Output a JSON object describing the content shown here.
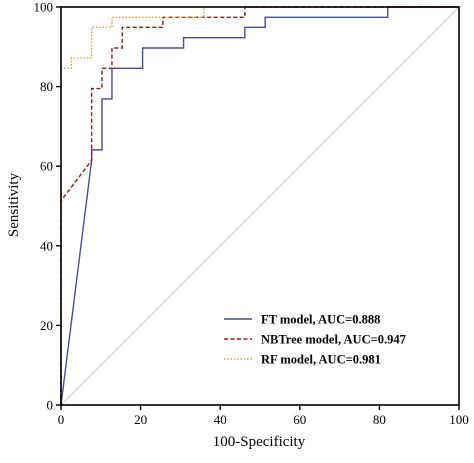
{
  "chart_data": {
    "type": "line",
    "xlabel": "100-Specificity",
    "ylabel": "Sensitivity",
    "xlim": [
      0,
      100
    ],
    "ylim": [
      0,
      100
    ],
    "xticks": [
      0,
      20,
      40,
      60,
      80,
      100
    ],
    "yticks": [
      0,
      20,
      40,
      60,
      80,
      100
    ],
    "grid": false,
    "legend_position": "bottom-right",
    "reference_line": {
      "x": [
        0,
        100
      ],
      "y": [
        0,
        100
      ],
      "color": "#c8c8c8"
    },
    "series": [
      {
        "name": "FT model, AUC=0.888",
        "color": "#4a4a9a",
        "dash": "solid",
        "x": [
          0,
          7.7,
          7.7,
          10.3,
          10.3,
          12.8,
          12.8,
          20.5,
          20.5,
          30.8,
          30.8,
          46.2,
          46.2,
          51.3,
          51.3,
          82.1,
          82.1,
          84.6,
          100
        ],
        "y": [
          0,
          61.5,
          64.1,
          64.1,
          76.9,
          76.9,
          84.6,
          84.6,
          89.7,
          89.7,
          92.3,
          92.3,
          94.9,
          94.9,
          97.4,
          97.4,
          100,
          100,
          100
        ]
      },
      {
        "name": "NBTree model, AUC=0.947",
        "color": "#8b1a1a",
        "dash": "dashed",
        "x": [
          0,
          0,
          7.7,
          7.7,
          10.3,
          10.3,
          12.8,
          12.8,
          15.4,
          15.4,
          25.6,
          25.6,
          46.2,
          46.2,
          100
        ],
        "y": [
          0,
          51.3,
          61.5,
          79.5,
          79.5,
          84.6,
          84.6,
          89.7,
          89.7,
          94.9,
          94.9,
          97.4,
          97.4,
          100,
          100
        ]
      },
      {
        "name": "RF model, AUC=0.981",
        "color": "#d9a040",
        "dash": "dotted",
        "x": [
          0,
          0,
          2.6,
          2.6,
          7.7,
          7.7,
          12.8,
          12.8,
          17.9,
          17.9,
          35.9,
          35.9,
          100
        ],
        "y": [
          0,
          84.6,
          84.6,
          87.2,
          87.2,
          94.9,
          94.9,
          97.4,
          97.4,
          97.4,
          97.4,
          100,
          100
        ]
      }
    ]
  }
}
